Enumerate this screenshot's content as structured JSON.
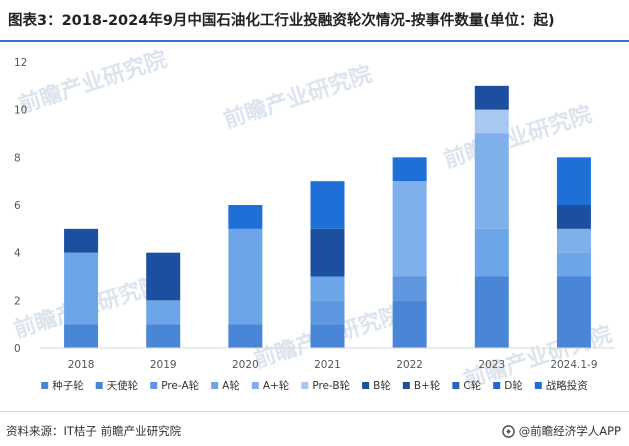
{
  "chart_data": {
    "type": "bar",
    "stacked": true,
    "title": "图表3：2018-2024年9月中国石油化工行业投融资轮次情况-按事件数量(单位：起)",
    "categories": [
      "2018",
      "2019",
      "2020",
      "2021",
      "2022",
      "2023",
      "2024.1-9"
    ],
    "ylim": [
      0,
      12
    ],
    "yticks": [
      0,
      2,
      4,
      6,
      8,
      10,
      12
    ],
    "grid": false,
    "legend_position": "bottom",
    "series": [
      {
        "name": "种子轮",
        "color": "#4a86d8",
        "values": [
          0,
          0,
          0,
          0,
          0,
          0,
          0
        ]
      },
      {
        "name": "天使轮",
        "color": "#4a86d8",
        "values": [
          1,
          1,
          1,
          1,
          2,
          3,
          3
        ]
      },
      {
        "name": "Pre-A轮",
        "color": "#5e97e0",
        "values": [
          0,
          0,
          0,
          1,
          1,
          0,
          0
        ]
      },
      {
        "name": "A轮",
        "color": "#6da6e8",
        "values": [
          3,
          1,
          4,
          1,
          0,
          2,
          1
        ]
      },
      {
        "name": "A+轮",
        "color": "#7fb0eb",
        "values": [
          0,
          0,
          0,
          0,
          4,
          4,
          1
        ]
      },
      {
        "name": "Pre-B轮",
        "color": "#a6c8f1",
        "values": [
          0,
          0,
          0,
          0,
          0,
          1,
          0
        ]
      },
      {
        "name": "B轮",
        "color": "#1c4fa0",
        "values": [
          1,
          2,
          0,
          2,
          0,
          1,
          1
        ]
      },
      {
        "name": "B+轮",
        "color": "#1f4e9c",
        "values": [
          0,
          0,
          0,
          0,
          0,
          0,
          0
        ]
      },
      {
        "name": "C轮",
        "color": "#2e64b8",
        "values": [
          0,
          0,
          0,
          0,
          0,
          0,
          0
        ]
      },
      {
        "name": "D轮",
        "color": "#1e6ad2",
        "values": [
          0,
          0,
          0,
          0,
          0,
          0,
          0
        ]
      },
      {
        "name": "战略投资",
        "color": "#1e6fd6",
        "values": [
          0,
          0,
          1,
          2,
          1,
          0,
          2
        ]
      }
    ]
  },
  "footer": {
    "source": "资料来源：IT桔子 前瞻产业研究院",
    "brand": "@前瞻经济学人APP"
  },
  "watermark": {
    "text": "前瞻产业研究院",
    "color": "#dde4ee"
  }
}
